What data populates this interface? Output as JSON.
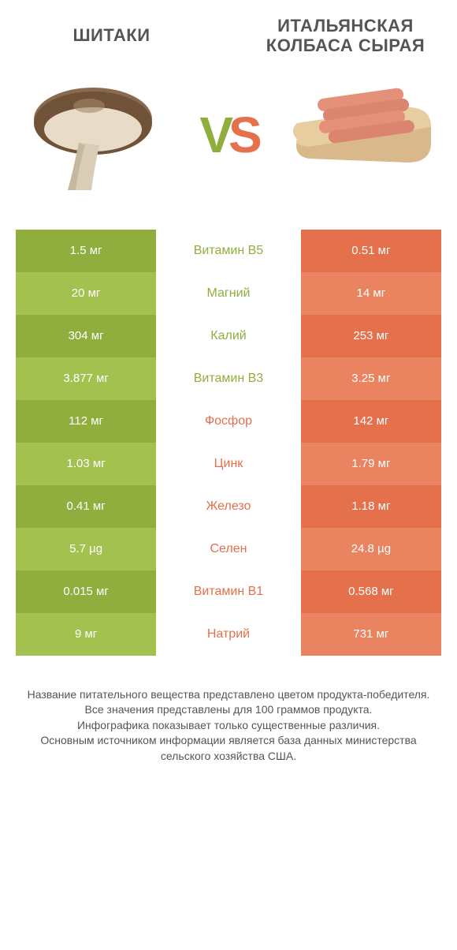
{
  "colors": {
    "green_dark": "#8fae3e",
    "green_light": "#a3c14f",
    "orange_dark": "#e4704c",
    "orange_light": "#ea8460",
    "mid_green": "#8fae3e",
    "mid_orange": "#e4704c",
    "text_grey": "#555555"
  },
  "header": {
    "left_title": "ШИТАКИ",
    "right_title": "ИТАЛЬЯНСКАЯ КОЛБАСА СЫРАЯ",
    "vs_v": "V",
    "vs_s": "S"
  },
  "rows": [
    {
      "left": "1.5 мг",
      "mid": "Витамин B5",
      "right": "0.51 мг",
      "winner": "left"
    },
    {
      "left": "20 мг",
      "mid": "Магний",
      "right": "14 мг",
      "winner": "left"
    },
    {
      "left": "304 мг",
      "mid": "Калий",
      "right": "253 мг",
      "winner": "left"
    },
    {
      "left": "3.877 мг",
      "mid": "Витамин B3",
      "right": "3.25 мг",
      "winner": "left"
    },
    {
      "left": "112 мг",
      "mid": "Фосфор",
      "right": "142 мг",
      "winner": "right"
    },
    {
      "left": "1.03 мг",
      "mid": "Цинк",
      "right": "1.79 мг",
      "winner": "right"
    },
    {
      "left": "0.41 мг",
      "mid": "Железо",
      "right": "1.18 мг",
      "winner": "right"
    },
    {
      "left": "5.7 µg",
      "mid": "Селен",
      "right": "24.8 µg",
      "winner": "right"
    },
    {
      "left": "0.015 мг",
      "mid": "Витамин B1",
      "right": "0.568 мг",
      "winner": "right"
    },
    {
      "left": "9 мг",
      "mid": "Натрий",
      "right": "731 мг",
      "winner": "right"
    }
  ],
  "footer": {
    "line1": "Название питательного вещества представлено цветом продукта-победителя.",
    "line2": "Все значения представлены для 100 граммов продукта.",
    "line3": "Инфографика показывает только существенные различия.",
    "line4": "Основным источником информации является база данных министерства сельского хозяйства США."
  }
}
